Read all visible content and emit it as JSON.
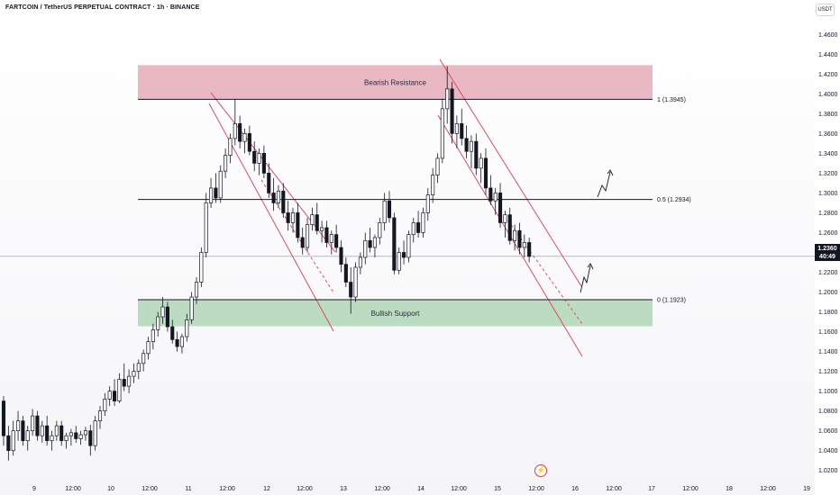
{
  "header": {
    "title": "FARTCOIN / TetherUS PERPETUAL CONTRACT · 1h · BINANCE",
    "unit": "USDT"
  },
  "colors": {
    "up": "#131722",
    "down": "#131722",
    "resistance_fill": "#e9b8c2",
    "support_fill": "#bcdcc2",
    "channel": "#e23b4e",
    "level_line": "#131722",
    "current_price_bg": "#131722"
  },
  "price_tag": {
    "price": "1.2360",
    "countdown": "40:49"
  },
  "event_icon": "lightning-icon",
  "chart_data": {
    "type": "candlestick",
    "title": "FARTCOIN / TetherUS PERPETUAL CONTRACT · 1h · BINANCE",
    "ylabel": "USDT",
    "ylim": [
      1.005,
      1.475
    ],
    "y_ticks": [
      1.02,
      1.04,
      1.06,
      1.08,
      1.1,
      1.12,
      1.14,
      1.16,
      1.18,
      1.2,
      1.22,
      1.24,
      1.26,
      1.28,
      1.3,
      1.32,
      1.34,
      1.36,
      1.38,
      1.4,
      1.42,
      1.44,
      1.46
    ],
    "x_ticks": [
      "9",
      "12:00",
      "10",
      "12:00",
      "11",
      "12:00",
      "12",
      "12:00",
      "13",
      "12:00",
      "14",
      "12:00",
      "15",
      "12:00",
      "16",
      "12:00",
      "17",
      "12:00",
      "18",
      "12:00",
      "19"
    ],
    "grid": false,
    "current_price": 1.236,
    "zones": [
      {
        "name": "Bearish Resistance",
        "from": 1.3945,
        "to": 1.429
      },
      {
        "name": "Bullish Support",
        "from": 1.1655,
        "to": 1.1923
      }
    ],
    "levels": [
      {
        "label": "1 (1.3945)",
        "value": 1.3945
      },
      {
        "label": "0.5 (1.2934)",
        "value": 1.2934
      },
      {
        "label": "0 (1.1923)",
        "value": 1.1923
      }
    ],
    "candles": [
      [
        1.09,
        1.095,
        1.045,
        1.055
      ],
      [
        1.055,
        1.065,
        1.03,
        1.04
      ],
      [
        1.04,
        1.07,
        1.035,
        1.06
      ],
      [
        1.06,
        1.08,
        1.05,
        1.07
      ],
      [
        1.07,
        1.075,
        1.045,
        1.05
      ],
      [
        1.05,
        1.065,
        1.04,
        1.06
      ],
      [
        1.06,
        1.082,
        1.055,
        1.075
      ],
      [
        1.075,
        1.08,
        1.05,
        1.055
      ],
      [
        1.055,
        1.07,
        1.048,
        1.065
      ],
      [
        1.065,
        1.075,
        1.045,
        1.05
      ],
      [
        1.05,
        1.06,
        1.04,
        1.055
      ],
      [
        1.055,
        1.07,
        1.05,
        1.065
      ],
      [
        1.065,
        1.07,
        1.045,
        1.05
      ],
      [
        1.05,
        1.058,
        1.042,
        1.055
      ],
      [
        1.055,
        1.062,
        1.045,
        1.058
      ],
      [
        1.058,
        1.065,
        1.048,
        1.052
      ],
      [
        1.052,
        1.06,
        1.046,
        1.056
      ],
      [
        1.056,
        1.064,
        1.05,
        1.06
      ],
      [
        1.06,
        1.066,
        1.035,
        1.045
      ],
      [
        1.045,
        1.075,
        1.04,
        1.07
      ],
      [
        1.07,
        1.085,
        1.062,
        1.08
      ],
      [
        1.08,
        1.098,
        1.075,
        1.092
      ],
      [
        1.092,
        1.105,
        1.085,
        1.1
      ],
      [
        1.1,
        1.112,
        1.085,
        1.09
      ],
      [
        1.09,
        1.118,
        1.088,
        1.112
      ],
      [
        1.112,
        1.128,
        1.1,
        1.105
      ],
      [
        1.105,
        1.122,
        1.098,
        1.115
      ],
      [
        1.115,
        1.128,
        1.108,
        1.12
      ],
      [
        1.12,
        1.132,
        1.112,
        1.128
      ],
      [
        1.128,
        1.142,
        1.12,
        1.138
      ],
      [
        1.138,
        1.155,
        1.132,
        1.15
      ],
      [
        1.15,
        1.168,
        1.142,
        1.162
      ],
      [
        1.162,
        1.18,
        1.155,
        1.175
      ],
      [
        1.175,
        1.195,
        1.168,
        1.185
      ],
      [
        1.185,
        1.19,
        1.16,
        1.165
      ],
      [
        1.165,
        1.172,
        1.148,
        1.152
      ],
      [
        1.152,
        1.16,
        1.14,
        1.145
      ],
      [
        1.145,
        1.158,
        1.138,
        1.155
      ],
      [
        1.155,
        1.178,
        1.15,
        1.172
      ],
      [
        1.172,
        1.2,
        1.168,
        1.195
      ],
      [
        1.195,
        1.215,
        1.188,
        1.21
      ],
      [
        1.21,
        1.245,
        1.205,
        1.24
      ],
      [
        1.24,
        1.3,
        1.235,
        1.29
      ],
      [
        1.29,
        1.315,
        1.285,
        1.305
      ],
      [
        1.305,
        1.32,
        1.29,
        1.295
      ],
      [
        1.295,
        1.328,
        1.29,
        1.322
      ],
      [
        1.322,
        1.345,
        1.315,
        1.338
      ],
      [
        1.338,
        1.36,
        1.33,
        1.355
      ],
      [
        1.355,
        1.395,
        1.348,
        1.37
      ],
      [
        1.37,
        1.378,
        1.345,
        1.352
      ],
      [
        1.352,
        1.365,
        1.34,
        1.36
      ],
      [
        1.36,
        1.368,
        1.338,
        1.342
      ],
      [
        1.342,
        1.352,
        1.322,
        1.33
      ],
      [
        1.33,
        1.345,
        1.318,
        1.34
      ],
      [
        1.34,
        1.348,
        1.315,
        1.32
      ],
      [
        1.32,
        1.33,
        1.295,
        1.3
      ],
      [
        1.3,
        1.315,
        1.282,
        1.29
      ],
      [
        1.29,
        1.308,
        1.285,
        1.302
      ],
      [
        1.302,
        1.31,
        1.275,
        1.28
      ],
      [
        1.28,
        1.292,
        1.262,
        1.27
      ],
      [
        1.27,
        1.285,
        1.26,
        1.28
      ],
      [
        1.28,
        1.29,
        1.25,
        1.255
      ],
      [
        1.255,
        1.265,
        1.238,
        1.245
      ],
      [
        1.245,
        1.275,
        1.24,
        1.268
      ],
      [
        1.268,
        1.285,
        1.262,
        1.278
      ],
      [
        1.278,
        1.29,
        1.258,
        1.262
      ],
      [
        1.262,
        1.272,
        1.25,
        1.265
      ],
      [
        1.265,
        1.272,
        1.245,
        1.25
      ],
      [
        1.25,
        1.262,
        1.238,
        1.258
      ],
      [
        1.258,
        1.268,
        1.24,
        1.245
      ],
      [
        1.245,
        1.252,
        1.22,
        1.228
      ],
      [
        1.228,
        1.235,
        1.205,
        1.21
      ],
      [
        1.21,
        1.225,
        1.178,
        1.195
      ],
      [
        1.195,
        1.23,
        1.19,
        1.225
      ],
      [
        1.225,
        1.24,
        1.218,
        1.235
      ],
      [
        1.235,
        1.26,
        1.228,
        1.252
      ],
      [
        1.252,
        1.265,
        1.24,
        1.245
      ],
      [
        1.245,
        1.258,
        1.235,
        1.255
      ],
      [
        1.255,
        1.275,
        1.248,
        1.27
      ],
      [
        1.27,
        1.3,
        1.262,
        1.292
      ],
      [
        1.292,
        1.302,
        1.27,
        1.275
      ],
      [
        1.275,
        1.28,
        1.218,
        1.222
      ],
      [
        1.222,
        1.245,
        1.218,
        1.24
      ],
      [
        1.24,
        1.252,
        1.228,
        1.235
      ],
      [
        1.235,
        1.262,
        1.23,
        1.258
      ],
      [
        1.258,
        1.275,
        1.25,
        1.27
      ],
      [
        1.27,
        1.282,
        1.255,
        1.26
      ],
      [
        1.26,
        1.285,
        1.255,
        1.28
      ],
      [
        1.28,
        1.305,
        1.272,
        1.298
      ],
      [
        1.298,
        1.325,
        1.29,
        1.318
      ],
      [
        1.318,
        1.34,
        1.31,
        1.335
      ],
      [
        1.335,
        1.395,
        1.33,
        1.385
      ],
      [
        1.385,
        1.428,
        1.37,
        1.405
      ],
      [
        1.405,
        1.412,
        1.35,
        1.36
      ],
      [
        1.36,
        1.378,
        1.345,
        1.37
      ],
      [
        1.37,
        1.385,
        1.348,
        1.355
      ],
      [
        1.355,
        1.368,
        1.335,
        1.342
      ],
      [
        1.342,
        1.358,
        1.325,
        1.352
      ],
      [
        1.352,
        1.36,
        1.318,
        1.325
      ],
      [
        1.325,
        1.34,
        1.31,
        1.335
      ],
      [
        1.335,
        1.345,
        1.298,
        1.305
      ],
      [
        1.305,
        1.318,
        1.288,
        1.292
      ],
      [
        1.292,
        1.305,
        1.278,
        1.3
      ],
      [
        1.3,
        1.31,
        1.265,
        1.27
      ],
      [
        1.27,
        1.282,
        1.255,
        1.278
      ],
      [
        1.278,
        1.285,
        1.248,
        1.252
      ],
      [
        1.252,
        1.268,
        1.242,
        1.262
      ],
      [
        1.262,
        1.27,
        1.238,
        1.245
      ],
      [
        1.245,
        1.258,
        1.235,
        1.25
      ],
      [
        1.25,
        1.255,
        1.23,
        1.236
      ]
    ]
  }
}
